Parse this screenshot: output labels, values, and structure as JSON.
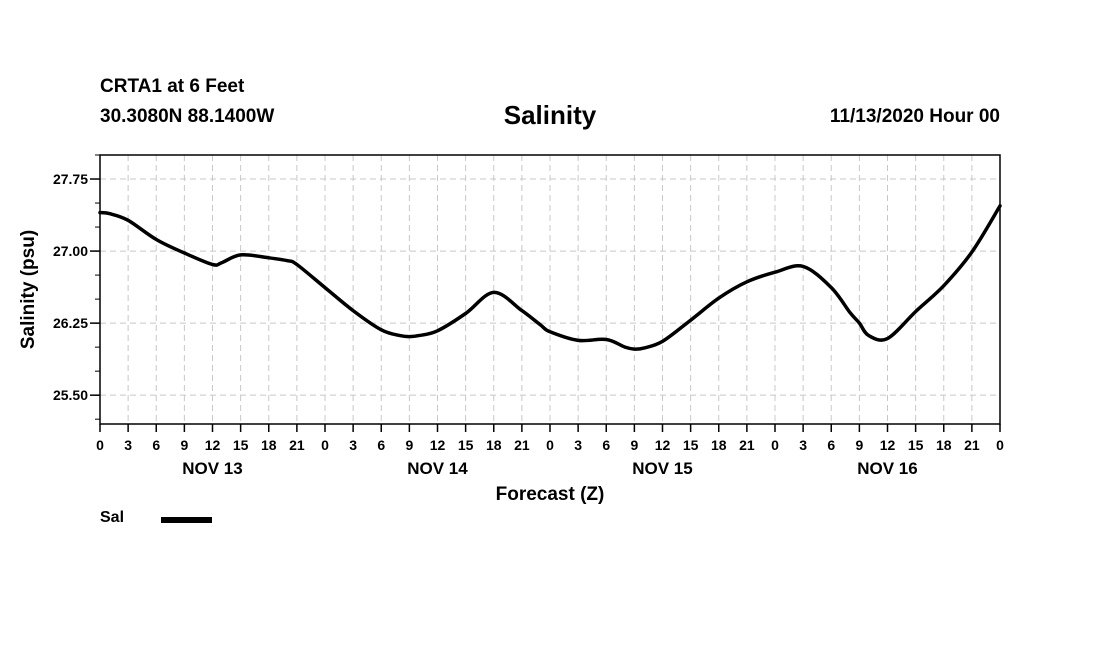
{
  "header": {
    "station": "CRTA1 at 6 Feet",
    "coords": "30.3080N 88.1400W",
    "title": "Salinity",
    "runtime": "11/13/2020 Hour 00"
  },
  "legend": {
    "label": "Sal",
    "placement": "bottom-left"
  },
  "colors": {
    "line": "#000000",
    "grid": "#c8c8c8",
    "axis": "#000000"
  },
  "chart_data": {
    "type": "line",
    "title": "Salinity",
    "xlabel": "Forecast (Z)",
    "ylabel": "Salinity (psu)",
    "grid": true,
    "xlim": [
      0,
      96
    ],
    "ylim": [
      25.2,
      28.0
    ],
    "yticks": [
      25.5,
      26.25,
      27.0,
      27.75
    ],
    "ytick_labels": [
      "25.50",
      "26.25",
      "27.00",
      "27.75"
    ],
    "xticks": [
      0,
      3,
      6,
      9,
      12,
      15,
      18,
      21,
      24,
      27,
      30,
      33,
      36,
      39,
      42,
      45,
      48,
      51,
      54,
      57,
      60,
      63,
      66,
      69,
      72,
      75,
      78,
      81,
      84,
      87,
      90,
      93,
      96
    ],
    "xtick_labels": [
      "0",
      "3",
      "6",
      "9",
      "12",
      "15",
      "18",
      "21",
      "0",
      "3",
      "6",
      "9",
      "12",
      "15",
      "18",
      "21",
      "0",
      "3",
      "6",
      "9",
      "12",
      "15",
      "18",
      "21",
      "0",
      "3",
      "6",
      "9",
      "12",
      "15",
      "18",
      "21",
      "0"
    ],
    "day_labels": [
      {
        "x": 12,
        "label": "NOV 13"
      },
      {
        "x": 36,
        "label": "NOV 14"
      },
      {
        "x": 60,
        "label": "NOV 15"
      },
      {
        "x": 84,
        "label": "NOV 16"
      }
    ],
    "series": [
      {
        "name": "Sal",
        "x": [
          0,
          1,
          3,
          6,
          9,
          12,
          13,
          15,
          18,
          20,
          21,
          24,
          27,
          30,
          32,
          33,
          34,
          36,
          39,
          42,
          45,
          47,
          48,
          51,
          54,
          56,
          57,
          58,
          60,
          63,
          66,
          69,
          72,
          75,
          78,
          80,
          81,
          82,
          84,
          87,
          90,
          93,
          96
        ],
        "y": [
          27.4,
          27.39,
          27.32,
          27.12,
          26.98,
          26.86,
          26.88,
          26.96,
          26.93,
          26.9,
          26.86,
          26.62,
          26.38,
          26.18,
          26.12,
          26.11,
          26.12,
          26.17,
          26.35,
          26.57,
          26.38,
          26.23,
          26.16,
          26.07,
          26.08,
          26.0,
          25.98,
          25.99,
          26.06,
          26.28,
          26.51,
          26.68,
          26.78,
          26.84,
          26.62,
          26.36,
          26.25,
          26.12,
          26.09,
          26.37,
          26.64,
          26.99,
          27.47
        ]
      }
    ]
  }
}
